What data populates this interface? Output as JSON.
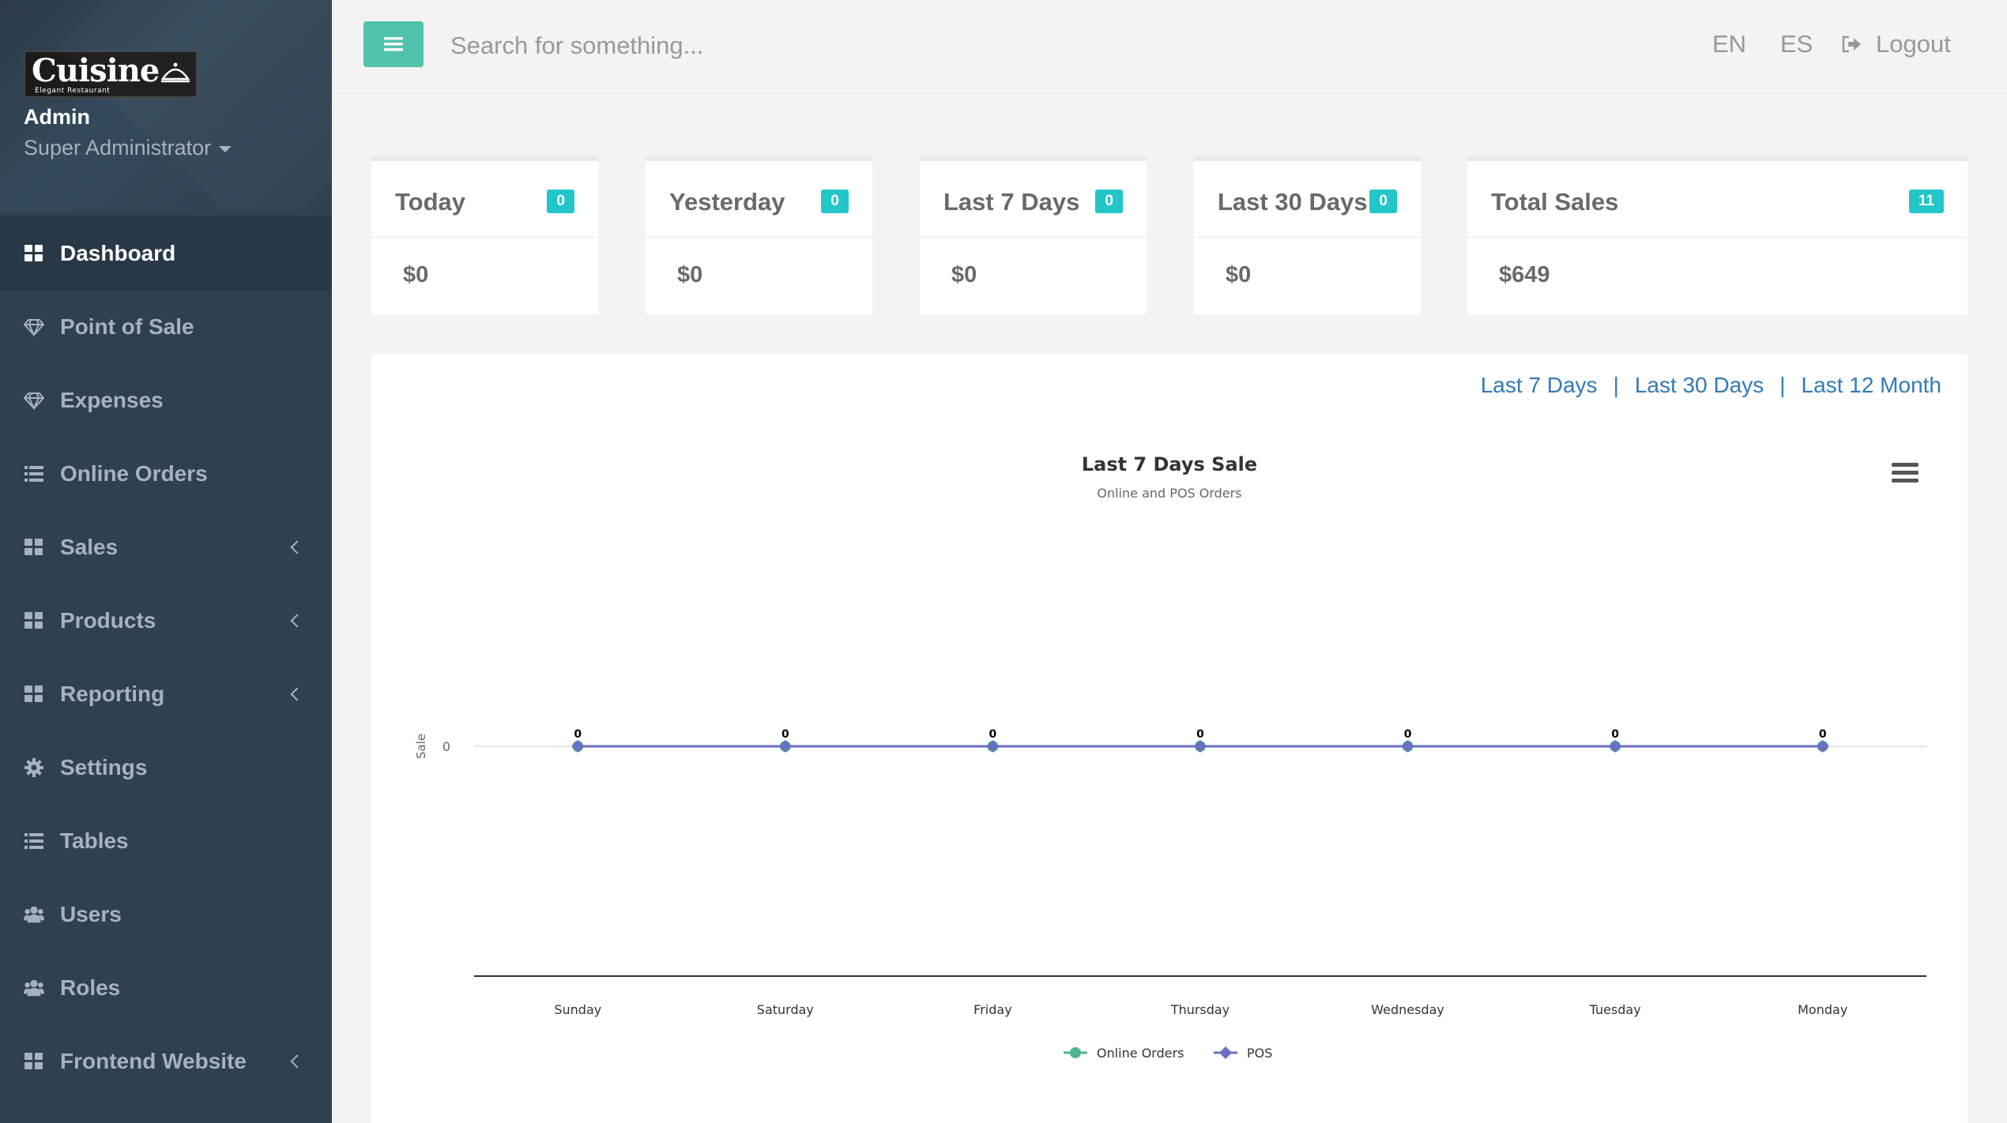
{
  "brand": {
    "name": "Cuisine",
    "tagline": "Elegant Restaurant"
  },
  "profile": {
    "name": "Admin",
    "role": "Super Administrator"
  },
  "sidebar": {
    "items": [
      {
        "label": "Dashboard",
        "icon": "grid-icon",
        "active": true
      },
      {
        "label": "Point of Sale",
        "icon": "diamond-icon"
      },
      {
        "label": "Expenses",
        "icon": "diamond-icon"
      },
      {
        "label": "Online Orders",
        "icon": "list-icon"
      },
      {
        "label": "Sales",
        "icon": "grid-icon",
        "has_submenu": true
      },
      {
        "label": "Products",
        "icon": "grid-icon",
        "has_submenu": true
      },
      {
        "label": "Reporting",
        "icon": "grid-icon",
        "has_submenu": true
      },
      {
        "label": "Settings",
        "icon": "gear-icon"
      },
      {
        "label": "Tables",
        "icon": "list-icon"
      },
      {
        "label": "Users",
        "icon": "users-icon"
      },
      {
        "label": "Roles",
        "icon": "users-icon"
      },
      {
        "label": "Frontend Website",
        "icon": "grid-icon",
        "has_submenu": true
      }
    ]
  },
  "topbar": {
    "search_placeholder": "Search for something...",
    "lang_en": "EN",
    "lang_es": "ES",
    "logout": "Logout"
  },
  "cards": [
    {
      "title": "Today",
      "badge": "0",
      "value": "$0"
    },
    {
      "title": "Yesterday",
      "badge": "0",
      "value": "$0"
    },
    {
      "title": "Last 7 Days",
      "badge": "0",
      "value": "$0"
    },
    {
      "title": "Last 30 Days",
      "badge": "0",
      "value": "$0"
    },
    {
      "title": "Total Sales",
      "badge": "11",
      "value": "$649"
    }
  ],
  "range_links": {
    "last7": "Last 7 Days",
    "last30": "Last 30 Days",
    "last12": "Last 12 Month",
    "separator": "|"
  },
  "colors": {
    "accent": "#1ab394",
    "badge": "#23c6c8",
    "sidebar": "#2f4050",
    "online": "#4fb599",
    "pos": "#6a6fbf",
    "link": "#337ab7"
  },
  "chart_data": {
    "type": "line",
    "title": "Last 7 Days Sale",
    "subtitle": "Online and POS Orders",
    "ylabel": "Sale",
    "xlabel": "",
    "categories": [
      "Sunday",
      "Saturday",
      "Friday",
      "Thursday",
      "Wednesday",
      "Tuesday",
      "Monday"
    ],
    "series": [
      {
        "name": "Online Orders",
        "values": [
          0,
          0,
          0,
          0,
          0,
          0,
          0
        ],
        "color": "#4fb599"
      },
      {
        "name": "POS",
        "values": [
          0,
          0,
          0,
          0,
          0,
          0,
          0
        ],
        "color": "#6a6fbf"
      }
    ],
    "yticks": [
      "0"
    ],
    "data_labels": true,
    "legend": "bottom-center"
  }
}
